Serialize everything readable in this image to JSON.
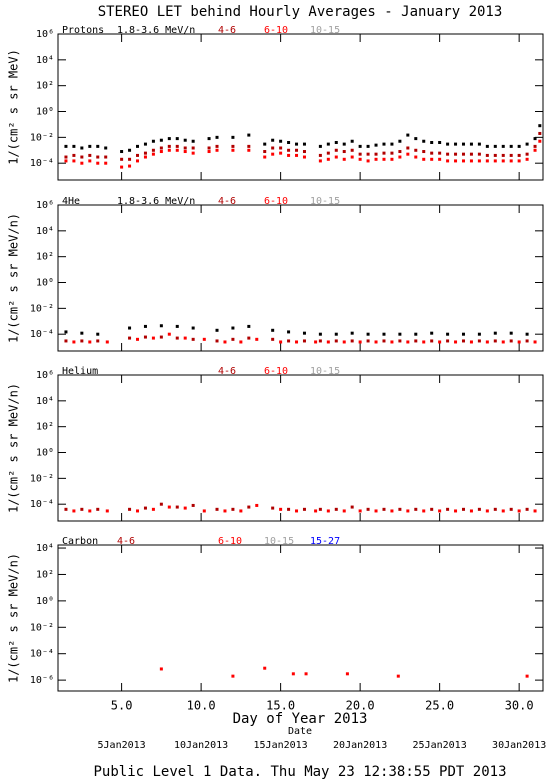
{
  "title": "STEREO LET behind Hourly Averages - January 2013",
  "footer": "Public Level 1 Data. Thu May 23 12:38:55 PDT 2013",
  "x_axis": {
    "xlim": [
      1,
      31.5
    ],
    "label": "Day of Year 2013",
    "date_label": "Date",
    "xticks": [
      {
        "value": 5,
        "label": "5.0"
      },
      {
        "value": 10,
        "label": "10.0"
      },
      {
        "value": 15,
        "label": "15.0"
      },
      {
        "value": 20,
        "label": "20.0"
      },
      {
        "value": 25,
        "label": "25.0"
      },
      {
        "value": 30,
        "label": "30.0"
      }
    ],
    "date_ticks": [
      {
        "value": 5,
        "label": "5Jan2013"
      },
      {
        "value": 10,
        "label": "10Jan2013"
      },
      {
        "value": 15,
        "label": "15Jan2013"
      },
      {
        "value": 20,
        "label": "20Jan2013"
      },
      {
        "value": 25,
        "label": "25Jan2013"
      },
      {
        "value": 30,
        "label": "30Jan2013"
      }
    ]
  },
  "chart_data": [
    {
      "type": "scatter",
      "species": "Protons",
      "ylabel": "1/(cm² s sr MeV)",
      "log_y": true,
      "ylim": [
        5e-06,
        1000000
      ],
      "yticks": [
        {
          "value": 1000000,
          "label": "10⁶"
        },
        {
          "value": 10000,
          "label": "10⁴"
        },
        {
          "value": 100,
          "label": "10²"
        },
        {
          "value": 1,
          "label": "10⁰"
        },
        {
          "value": 0.01,
          "label": "10⁻²"
        },
        {
          "value": 0.0001,
          "label": "10⁻⁴"
        }
      ],
      "series": [
        {
          "name": "1.8-3.6 MeV/n",
          "color": "#000000",
          "x": [
            1.5,
            2,
            2.5,
            3,
            3.5,
            4,
            5,
            5.5,
            6,
            6.5,
            7,
            7.5,
            8,
            8.5,
            9,
            9.5,
            10.5,
            11,
            12,
            13,
            14,
            14.5,
            15,
            15.5,
            16,
            16.5,
            17.5,
            18,
            18.5,
            19,
            19.5,
            20,
            20.5,
            21,
            21.5,
            22,
            22.5,
            23,
            23.5,
            24,
            24.5,
            25,
            25.5,
            26,
            26.5,
            27,
            27.5,
            28,
            28.5,
            29,
            29.5,
            30,
            30.5,
            31,
            31.3
          ],
          "values": [
            0.002,
            0.002,
            0.0015,
            0.002,
            0.002,
            0.0015,
            0.0008,
            0.001,
            0.002,
            0.003,
            0.005,
            0.006,
            0.008,
            0.008,
            0.006,
            0.005,
            0.008,
            0.01,
            0.01,
            0.015,
            0.003,
            0.006,
            0.005,
            0.004,
            0.003,
            0.003,
            0.002,
            0.003,
            0.004,
            0.003,
            0.005,
            0.002,
            0.002,
            0.0025,
            0.003,
            0.003,
            0.005,
            0.015,
            0.008,
            0.005,
            0.004,
            0.004,
            0.003,
            0.003,
            0.003,
            0.003,
            0.003,
            0.002,
            0.002,
            0.002,
            0.002,
            0.002,
            0.003,
            0.008,
            0.08
          ]
        },
        {
          "name": "4-6",
          "color": "#b00000",
          "x": [
            1.5,
            2,
            2.5,
            3,
            3.5,
            4,
            5,
            5.5,
            6,
            6.5,
            7,
            7.5,
            8,
            8.5,
            9,
            9.5,
            10.5,
            11,
            12,
            13,
            14,
            14.5,
            15,
            15.5,
            16,
            16.5,
            17.5,
            18,
            18.5,
            19,
            19.5,
            20,
            20.5,
            21,
            21.5,
            22,
            22.5,
            23,
            23.5,
            24,
            24.5,
            25,
            25.5,
            26,
            26.5,
            27,
            27.5,
            28,
            28.5,
            29,
            29.5,
            30,
            30.5,
            31,
            31.3
          ],
          "values": [
            0.0003,
            0.0004,
            0.0003,
            0.0004,
            0.0003,
            0.0003,
            0.0002,
            0.0002,
            0.0004,
            0.0006,
            0.001,
            0.0015,
            0.002,
            0.002,
            0.0015,
            0.0015,
            0.0015,
            0.002,
            0.002,
            0.002,
            0.0008,
            0.0015,
            0.0015,
            0.001,
            0.001,
            0.0008,
            0.0004,
            0.0006,
            0.001,
            0.0008,
            0.001,
            0.0005,
            0.0005,
            0.0005,
            0.0006,
            0.0006,
            0.0008,
            0.0015,
            0.001,
            0.0008,
            0.0006,
            0.0006,
            0.0005,
            0.0005,
            0.0005,
            0.0005,
            0.0005,
            0.0004,
            0.0004,
            0.0004,
            0.0004,
            0.0004,
            0.0005,
            0.002,
            0.02
          ]
        },
        {
          "name": "6-10",
          "color": "#ff0000",
          "x": [
            1.5,
            2,
            2.5,
            3,
            3.5,
            4,
            5,
            5.5,
            6,
            6.5,
            7,
            7.5,
            8,
            8.5,
            9,
            9.5,
            10.5,
            11,
            12,
            13,
            14,
            14.5,
            15,
            15.5,
            16,
            16.5,
            17.5,
            18,
            18.5,
            19,
            19.5,
            20,
            20.5,
            21,
            21.5,
            22,
            22.5,
            23,
            23.5,
            24,
            24.5,
            25,
            25.5,
            26,
            26.5,
            27,
            27.5,
            28,
            28.5,
            29,
            29.5,
            30,
            30.5,
            31,
            31.3
          ],
          "values": [
            0.00015,
            0.00015,
            0.0001,
            0.00015,
            0.0001,
            0.0001,
            5e-05,
            6e-05,
            0.00015,
            0.0003,
            0.0005,
            0.0008,
            0.001,
            0.001,
            0.0008,
            0.0006,
            0.0008,
            0.001,
            0.001,
            0.001,
            0.0003,
            0.0005,
            0.0006,
            0.0004,
            0.0004,
            0.0003,
            0.00015,
            0.0002,
            0.0003,
            0.0002,
            0.0003,
            0.0002,
            0.00015,
            0.0002,
            0.0002,
            0.0002,
            0.0003,
            0.0005,
            0.0003,
            0.0002,
            0.0002,
            0.0002,
            0.00015,
            0.00015,
            0.00015,
            0.00015,
            0.00015,
            0.00015,
            0.00015,
            0.00015,
            0.00015,
            0.00015,
            0.0002,
            0.001,
            0.005
          ]
        },
        {
          "name": "10-15",
          "color": "#a0a0a0",
          "x": [],
          "values": []
        }
      ]
    },
    {
      "type": "scatter",
      "species": "4He",
      "ylabel": "1/(cm² s sr MeV/n)",
      "log_y": true,
      "ylim": [
        5e-06,
        1000000
      ],
      "yticks": [
        {
          "value": 1000000,
          "label": "10⁶"
        },
        {
          "value": 10000,
          "label": "10⁴"
        },
        {
          "value": 100,
          "label": "10²"
        },
        {
          "value": 1,
          "label": "10⁰"
        },
        {
          "value": 0.01,
          "label": "10⁻²"
        },
        {
          "value": 0.0001,
          "label": "10⁻⁴"
        }
      ],
      "series": [
        {
          "name": "1.8-3.6 MeV/n",
          "color": "#000000",
          "x": [
            1.5,
            2.5,
            3.5,
            5.5,
            6.5,
            7.5,
            8.5,
            9.5,
            11,
            12,
            13,
            14.5,
            15.5,
            16.5,
            17.5,
            18.5,
            19.5,
            20.5,
            21.5,
            22.5,
            23.5,
            24.5,
            25.5,
            26.5,
            27.5,
            28.5,
            29.5,
            30.5
          ],
          "values": [
            0.00015,
            0.00012,
            0.0001,
            0.0003,
            0.0004,
            0.00045,
            0.0004,
            0.0003,
            0.0002,
            0.0003,
            0.0004,
            0.0002,
            0.00015,
            0.00012,
            0.0001,
            0.0001,
            0.00012,
            0.0001,
            0.0001,
            0.0001,
            0.0001,
            0.00012,
            0.0001,
            0.0001,
            0.0001,
            0.00012,
            0.00012,
            0.0001
          ]
        },
        {
          "name": "4-6",
          "color": "#b00000",
          "x": [
            1.5,
            2.5,
            3.5,
            5.5,
            6.5,
            7.5,
            8.5,
            9.5,
            11,
            12,
            13,
            14.5,
            15.5,
            16.5,
            17.5,
            18.5,
            19.5,
            20.5,
            21.5,
            22.5,
            23.5,
            24.5,
            25.5,
            26.5,
            27.5,
            28.5,
            29.5,
            30.5
          ],
          "values": [
            3e-05,
            3e-05,
            3e-05,
            5e-05,
            6e-05,
            6e-05,
            5e-05,
            4e-05,
            3e-05,
            4e-05,
            5e-05,
            4e-05,
            3e-05,
            3e-05,
            3e-05,
            3e-05,
            3e-05,
            3e-05,
            3e-05,
            3e-05,
            3e-05,
            3e-05,
            3e-05,
            3e-05,
            3e-05,
            3e-05,
            3e-05,
            3e-05
          ]
        },
        {
          "name": "6-10",
          "color": "#ff0000",
          "x": [
            2,
            3,
            4.1,
            6,
            7,
            8,
            9,
            10.2,
            11.5,
            12.5,
            13.5,
            15,
            16,
            17.2,
            18,
            19,
            20,
            21,
            22,
            23,
            24,
            25,
            26,
            27,
            28,
            29,
            30,
            31
          ],
          "values": [
            2.5e-05,
            2.5e-05,
            2.5e-05,
            4e-05,
            5e-05,
            0.0001,
            5e-05,
            4e-05,
            2.5e-05,
            2.5e-05,
            4e-05,
            2.5e-05,
            2.5e-05,
            2.5e-05,
            2.5e-05,
            2.5e-05,
            2.5e-05,
            2.5e-05,
            2.5e-05,
            2.5e-05,
            2.5e-05,
            2.5e-05,
            2.5e-05,
            2.5e-05,
            2.5e-05,
            2.5e-05,
            2.5e-05,
            2.5e-05
          ]
        },
        {
          "name": "10-15",
          "color": "#a0a0a0",
          "x": [],
          "values": []
        }
      ]
    },
    {
      "type": "scatter",
      "species": "Helium",
      "ylabel": "1/(cm² s sr MeV/n)",
      "log_y": true,
      "ylim": [
        5e-06,
        1000000
      ],
      "yticks": [
        {
          "value": 1000000,
          "label": "10⁶"
        },
        {
          "value": 10000,
          "label": "10⁴"
        },
        {
          "value": 100,
          "label": "10²"
        },
        {
          "value": 1,
          "label": "10⁰"
        },
        {
          "value": 0.01,
          "label": "10⁻²"
        },
        {
          "value": 0.0001,
          "label": "10⁻⁴"
        }
      ],
      "series": [
        {
          "name": "4-6",
          "color": "#b00000",
          "x": [
            1.5,
            2.5,
            3.5,
            5.5,
            6.5,
            7.5,
            8.5,
            9.5,
            11,
            12,
            13,
            14.5,
            15.5,
            16.5,
            17.5,
            18.5,
            19.5,
            20.5,
            21.5,
            22.5,
            23.5,
            24.5,
            25.5,
            26.5,
            27.5,
            28.5,
            29.5,
            30.5
          ],
          "values": [
            4e-05,
            4e-05,
            4e-05,
            4e-05,
            5e-05,
            0.0001,
            6e-05,
            8e-05,
            4e-05,
            4e-05,
            6e-05,
            5e-05,
            4e-05,
            4e-05,
            4e-05,
            4e-05,
            6e-05,
            4e-05,
            4e-05,
            4e-05,
            4e-05,
            4e-05,
            4e-05,
            4e-05,
            4e-05,
            4e-05,
            4e-05,
            4e-05
          ]
        },
        {
          "name": "6-10",
          "color": "#ff0000",
          "x": [
            2,
            3,
            4.1,
            6,
            7,
            8,
            9,
            10.2,
            11.5,
            12.5,
            13.5,
            15,
            16,
            17.2,
            18,
            19,
            20,
            21,
            22,
            23,
            24,
            25,
            26,
            27,
            28,
            29,
            30,
            31
          ],
          "values": [
            3e-05,
            3e-05,
            3e-05,
            3e-05,
            4e-05,
            6e-05,
            5e-05,
            3e-05,
            3e-05,
            3e-05,
            8e-05,
            4e-05,
            3e-05,
            3e-05,
            3e-05,
            3e-05,
            3e-05,
            3e-05,
            3e-05,
            3e-05,
            3e-05,
            3e-05,
            3e-05,
            3e-05,
            3e-05,
            3e-05,
            3e-05,
            3e-05
          ]
        },
        {
          "name": "10-15",
          "color": "#a0a0a0",
          "x": [],
          "values": []
        }
      ]
    },
    {
      "type": "scatter",
      "species": "Carbon",
      "ylabel": "1/(cm² s sr MeV/n)",
      "log_y": true,
      "ylim": [
        1.5e-07,
        17000
      ],
      "yticks": [
        {
          "value": 10000,
          "label": "10⁴"
        },
        {
          "value": 100,
          "label": "10²"
        },
        {
          "value": 1,
          "label": "10⁰"
        },
        {
          "value": 0.01,
          "label": "10⁻²"
        },
        {
          "value": 0.0001,
          "label": "10⁻⁴"
        },
        {
          "value": 1e-06,
          "label": "10⁻⁶"
        }
      ],
      "series": [
        {
          "name": "4-6",
          "color": "#b00000",
          "x": [],
          "values": []
        },
        {
          "name": "6-10",
          "color": "#ff0000",
          "x": [
            7.5,
            12,
            14,
            15.8,
            16.6,
            19.2,
            22.4,
            30.5
          ],
          "values": [
            7e-06,
            2e-06,
            8e-06,
            3e-06,
            3e-06,
            3e-06,
            2e-06,
            2e-06
          ]
        },
        {
          "name": "10-15",
          "color": "#a0a0a0",
          "x": [],
          "values": []
        },
        {
          "name": "15-27",
          "color": "#0000ff",
          "x": [],
          "values": []
        }
      ]
    }
  ]
}
